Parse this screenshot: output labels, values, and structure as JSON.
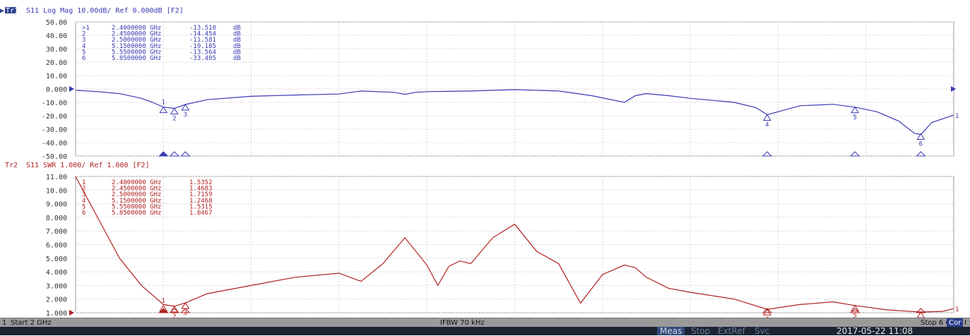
{
  "colors": {
    "trace1": "#3a3ab4",
    "trace2": "#b02020",
    "grid": "#d8d8d8",
    "background": "#ffffff"
  },
  "chart_data": [
    {
      "type": "line",
      "title": "Tr1 S11 Log Mag 10.00dB/ Ref 0.000dB [F2]",
      "channel_label": "Tr1",
      "title_rest": "S11 Log Mag 10.00dB/ Ref 0.000dB [F2]",
      "ylim": [
        -50,
        50
      ],
      "xlim": [
        2,
        6
      ],
      "grid": true,
      "y_ticks": [
        "50.00",
        "40.00",
        "30.00",
        "20.00",
        "10.00",
        "0.000",
        "-10.00",
        "-20.00",
        "-30.00",
        "-40.00",
        "-50.00"
      ],
      "markers": [
        {
          "id": "1",
          "freq": "2.4000000 GHz",
          "value": "-13.510",
          "unit": "dB",
          "active": true
        },
        {
          "id": "2",
          "freq": "2.4500000 GHz",
          "value": "-14.454",
          "unit": "dB"
        },
        {
          "id": "3",
          "freq": "2.5000000 GHz",
          "value": "-11.581",
          "unit": "dB"
        },
        {
          "id": "4",
          "freq": "5.1500000 GHz",
          "value": "-19.185",
          "unit": "dB"
        },
        {
          "id": "5",
          "freq": "5.5500000 GHz",
          "value": "-13.564",
          "unit": "dB"
        },
        {
          "id": "6",
          "freq": "5.8500000 GHz",
          "value": "-33.405",
          "unit": "dB"
        }
      ],
      "marker_x": [
        2.4,
        2.45,
        2.5,
        5.15,
        5.55,
        5.85
      ],
      "marker_y": [
        -13.51,
        -14.454,
        -11.581,
        -19.185,
        -13.564,
        -33.405
      ],
      "x": [
        2.0,
        2.1,
        2.2,
        2.3,
        2.35,
        2.4,
        2.45,
        2.5,
        2.6,
        2.8,
        3.0,
        3.2,
        3.3,
        3.45,
        3.5,
        3.55,
        3.6,
        3.8,
        4.0,
        4.2,
        4.35,
        4.5,
        4.55,
        4.6,
        4.7,
        4.8,
        5.0,
        5.1,
        5.15,
        5.2,
        5.3,
        5.45,
        5.55,
        5.65,
        5.75,
        5.82,
        5.85,
        5.9,
        6.0
      ],
      "y": [
        -1,
        -2,
        -3.5,
        -7,
        -10,
        -13.5,
        -14.5,
        -11.6,
        -8,
        -5.5,
        -4.5,
        -3.8,
        -1.5,
        -2.5,
        -4,
        -2.5,
        -2,
        -1.5,
        -0.5,
        -1.5,
        -5,
        -10,
        -5,
        -3.5,
        -5,
        -7,
        -10,
        -14,
        -19.2,
        -17,
        -12.5,
        -11.5,
        -13.6,
        -17,
        -24,
        -33,
        -34,
        -25,
        -19.5
      ]
    },
    {
      "type": "line",
      "title": "Tr2 S11 SWR 1.000/ Ref 1.000 [F2]",
      "channel_label": "Tr2",
      "title_rest": "S11 SWR 1.000/ Ref 1.000 [F2]",
      "ylim": [
        1,
        11
      ],
      "xlim": [
        2,
        6
      ],
      "grid": true,
      "y_ticks": [
        "11.00",
        "10.00",
        "9.000",
        "8.000",
        "7.000",
        "6.000",
        "5.000",
        "4.000",
        "3.000",
        "2.000",
        "1.000"
      ],
      "markers": [
        {
          "id": "1",
          "freq": "2.4000000 GHz",
          "value": "1.5352",
          "unit": ""
        },
        {
          "id": "2",
          "freq": "2.4500000 GHz",
          "value": "1.4683",
          "unit": ""
        },
        {
          "id": "3",
          "freq": "2.5000000 GHz",
          "value": "1.7159",
          "unit": ""
        },
        {
          "id": "4",
          "freq": "5.1500000 GHz",
          "value": "1.2468",
          "unit": ""
        },
        {
          "id": "5",
          "freq": "5.5500000 GHz",
          "value": "1.5315",
          "unit": ""
        },
        {
          "id": "6",
          "freq": "5.8500000 GHz",
          "value": "1.0467",
          "unit": ""
        }
      ],
      "marker_x": [
        2.4,
        2.45,
        2.5,
        5.15,
        5.55,
        5.85
      ],
      "marker_y": [
        1.5352,
        1.4683,
        1.7159,
        1.2468,
        1.5315,
        1.0467
      ],
      "x": [
        2.0,
        2.05,
        2.1,
        2.15,
        2.2,
        2.3,
        2.4,
        2.45,
        2.5,
        2.6,
        2.8,
        3.0,
        3.2,
        3.3,
        3.4,
        3.5,
        3.6,
        3.65,
        3.7,
        3.75,
        3.8,
        3.9,
        4.0,
        4.1,
        4.2,
        4.3,
        4.4,
        4.5,
        4.55,
        4.6,
        4.7,
        4.8,
        5.0,
        5.15,
        5.3,
        5.45,
        5.55,
        5.7,
        5.85,
        5.95,
        6.0
      ],
      "y": [
        11,
        9.5,
        8,
        6.5,
        5,
        3,
        1.6,
        1.47,
        1.72,
        2.4,
        3,
        3.6,
        3.9,
        3.3,
        4.6,
        6.5,
        4.5,
        3,
        4.4,
        4.8,
        4.6,
        6.5,
        7.5,
        5.5,
        4.6,
        1.7,
        3.8,
        4.5,
        4.3,
        3.6,
        2.8,
        2.5,
        2,
        1.25,
        1.6,
        1.8,
        1.53,
        1.2,
        1.05,
        1.1,
        1.3
      ]
    }
  ],
  "status": {
    "channel": "1",
    "start": "Start 2 GHz",
    "ifbw": "IFBW 70 kHz",
    "stop": "Stop 6 GHz",
    "cor": "Cor",
    "trailing": "I"
  },
  "bottom": {
    "meas": "Meas",
    "stop": "Stop",
    "extref": "ExtRef",
    "svc": "Svc",
    "datetime": "2017-05-22 11:08"
  }
}
